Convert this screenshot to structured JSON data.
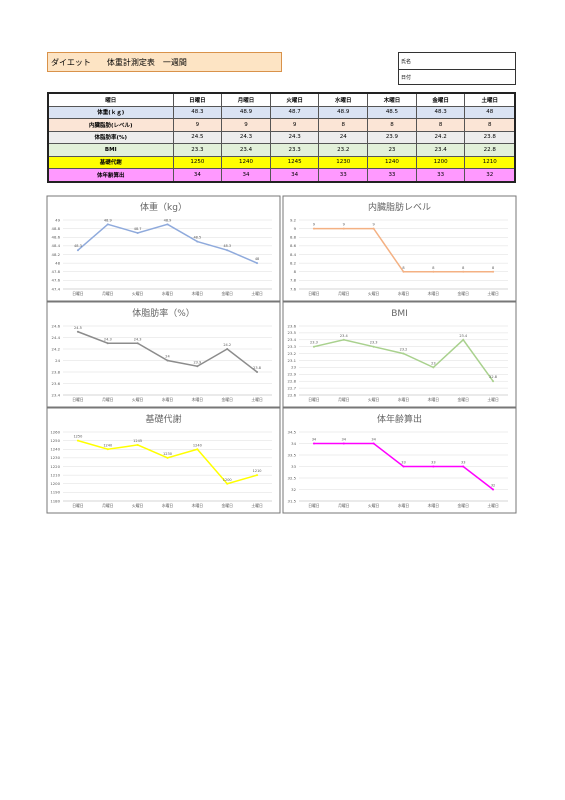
{
  "header": {
    "title": "ダイエット　　体重計測定表　一週間",
    "name_label": "氏名",
    "date_label": "日付"
  },
  "table": {
    "header": [
      "曜日",
      "日曜日",
      "月曜日",
      "火曜日",
      "水曜日",
      "木曜日",
      "金曜日",
      "土曜日"
    ],
    "rows": [
      [
        "体重(ｋｇ)",
        48.3,
        48.9,
        48.7,
        48.9,
        48.5,
        48.3,
        48
      ],
      [
        "内臓脂肪(レベル)",
        9,
        9,
        9,
        8,
        8,
        8,
        8
      ],
      [
        "体脂肪率(%)",
        24.5,
        24.3,
        24.3,
        24,
        23.9,
        24.2,
        23.8
      ],
      [
        "BMI",
        23.3,
        23.4,
        23.3,
        23.2,
        23,
        23.4,
        22.8
      ],
      [
        "基礎代謝",
        1250,
        1240,
        1245,
        1230,
        1240,
        1200,
        1210
      ],
      [
        "体年齢算出",
        34,
        34,
        34,
        33,
        33,
        33,
        32
      ]
    ],
    "row_colors": [
      "#dae3f3",
      "#fbe5d6",
      "#ededed",
      "#e2f0d9",
      "#ffff00",
      "#ff99ff"
    ]
  },
  "chart_data": [
    {
      "type": "line",
      "title": "体重（kg）",
      "categories": [
        "日曜日",
        "月曜日",
        "火曜日",
        "水曜日",
        "木曜日",
        "金曜日",
        "土曜日"
      ],
      "values": [
        48.3,
        48.9,
        48.7,
        48.9,
        48.5,
        48.3,
        48
      ],
      "color": "#8faadc",
      "ylim": [
        47.4,
        49
      ],
      "yticks": [
        47.4,
        47.6,
        47.8,
        48,
        48.2,
        48.4,
        48.6,
        48.8,
        49
      ],
      "grid": true
    },
    {
      "type": "line",
      "title": "内臓脂肪レベル",
      "categories": [
        "日曜日",
        "月曜日",
        "火曜日",
        "水曜日",
        "木曜日",
        "金曜日",
        "土曜日"
      ],
      "values": [
        9,
        9,
        9,
        8,
        8,
        8,
        8
      ],
      "color": "#f4b183",
      "ylim": [
        7.6,
        9.2
      ],
      "yticks": [
        7.6,
        7.8,
        8,
        8.2,
        8.4,
        8.6,
        8.8,
        9,
        9.2
      ],
      "grid": true
    },
    {
      "type": "line",
      "title": "体脂肪率（%）",
      "categories": [
        "日曜日",
        "月曜日",
        "火曜日",
        "水曜日",
        "木曜日",
        "金曜日",
        "土曜日"
      ],
      "values": [
        24.5,
        24.3,
        24.3,
        24,
        23.9,
        24.2,
        23.8
      ],
      "color": "#8c8c8c",
      "ylim": [
        23.4,
        24.6
      ],
      "yticks": [
        23.4,
        23.6,
        23.8,
        24,
        24.2,
        24.4,
        24.6
      ],
      "grid": true
    },
    {
      "type": "line",
      "title": "BMI",
      "categories": [
        "日曜日",
        "月曜日",
        "火曜日",
        "水曜日",
        "木曜日",
        "金曜日",
        "土曜日"
      ],
      "values": [
        23.3,
        23.4,
        23.3,
        23.2,
        23,
        23.4,
        22.8
      ],
      "color": "#a9d18e",
      "ylim": [
        22.6,
        23.6
      ],
      "yticks": [
        22.6,
        22.7,
        22.8,
        22.9,
        23,
        23.1,
        23.2,
        23.3,
        23.4,
        23.5,
        23.6
      ],
      "grid": true
    },
    {
      "type": "line",
      "title": "基礎代謝",
      "categories": [
        "日曜日",
        "月曜日",
        "火曜日",
        "水曜日",
        "木曜日",
        "金曜日",
        "土曜日"
      ],
      "values": [
        1250,
        1240,
        1245,
        1230,
        1240,
        1200,
        1210
      ],
      "color": "#ffff00",
      "ylim": [
        1180,
        1260
      ],
      "yticks": [
        1180,
        1190,
        1200,
        1210,
        1220,
        1230,
        1240,
        1250,
        1260
      ],
      "grid": true
    },
    {
      "type": "line",
      "title": "体年齢算出",
      "categories": [
        "日曜日",
        "月曜日",
        "火曜日",
        "水曜日",
        "木曜日",
        "金曜日",
        "土曜日"
      ],
      "values": [
        34,
        34,
        34,
        33,
        33,
        33,
        32
      ],
      "color": "#ff00ff",
      "ylim": [
        31.5,
        34.5
      ],
      "yticks": [
        31.5,
        32,
        32.5,
        33,
        33.5,
        34,
        34.5
      ],
      "grid": true
    }
  ]
}
